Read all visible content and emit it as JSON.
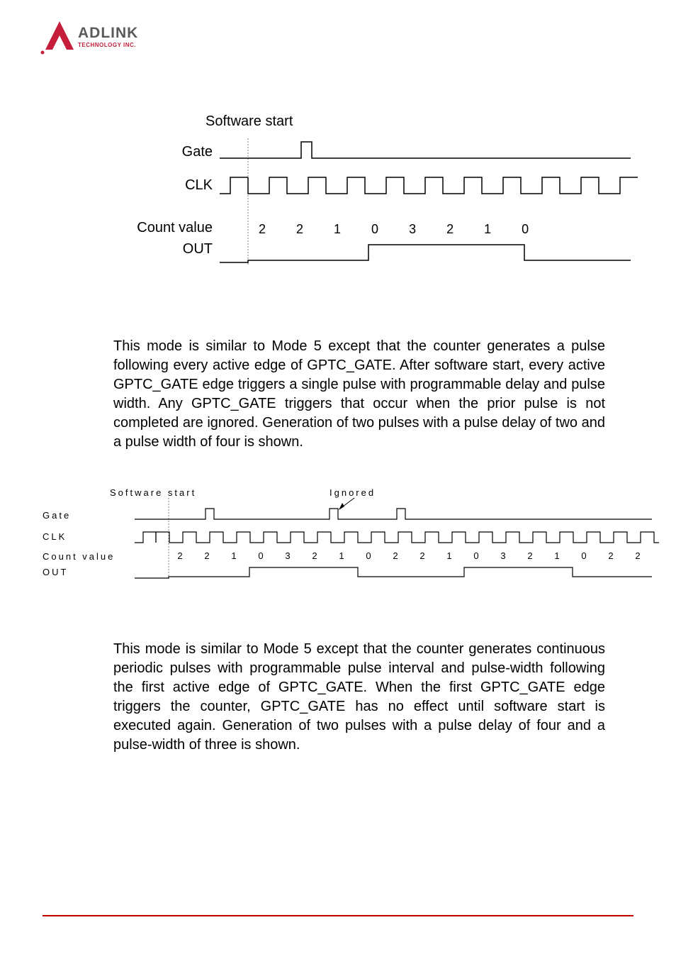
{
  "logo": {
    "text_main": "ADLINK",
    "text_sub": "TECHNOLOGY INC.",
    "triangle_color": "#c41e3a",
    "text_color": "#5a5a5a"
  },
  "diagram1": {
    "title": "Software start",
    "labels": {
      "gate": "Gate",
      "clk": "CLK",
      "count": "Count value",
      "out": "OUT"
    },
    "count_values": [
      "2",
      "2",
      "1",
      "0",
      "3",
      "2",
      "1",
      "0"
    ]
  },
  "paragraph1": "This mode is similar to Mode 5 except that the counter generates a pulse following every active edge of GPTC_GATE. After software start, every active GPTC_GATE edge triggers a single pulse with programmable delay and pulse width. Any GPTC_GATE triggers that occur when the prior pulse is not completed are ignored. Generation of two pulses with a pulse delay of two and a pulse width of four is shown.",
  "diagram2": {
    "title_start": "Software start",
    "title_ignored": "Ignored",
    "labels": {
      "gate": "Gate",
      "clk": "CLK",
      "count": "Count value",
      "out": "OUT"
    },
    "count_values": [
      "2",
      "2",
      "1",
      "0",
      "3",
      "2",
      "1",
      "0",
      "2",
      "2",
      "1",
      "0",
      "3",
      "2",
      "1",
      "0",
      "2",
      "2"
    ]
  },
  "paragraph2": "This mode is similar to Mode 5 except that the counter generates continuous periodic pulses with programmable pulse interval and pulse-width following the first active edge of GPTC_GATE. When the first GPTC_GATE edge triggers the counter, GPTC_GATE has no effect until software start is executed again. Generation of two pulses with a pulse delay of four and a pulse-width of three is shown.",
  "colors": {
    "stroke": "#000000",
    "guide": "#808080",
    "footer": "#c41e3a"
  }
}
